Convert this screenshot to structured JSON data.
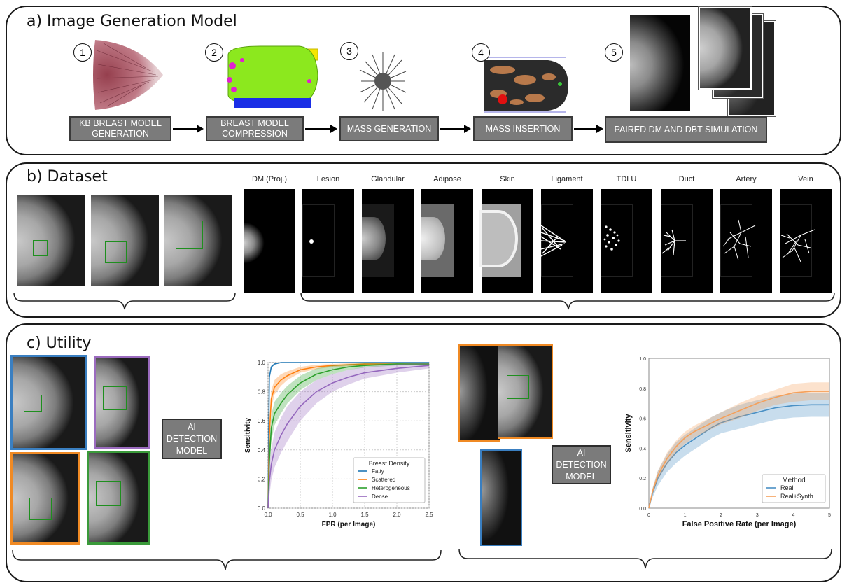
{
  "panel_a": {
    "title": "a) Image Generation Model",
    "steps": [
      {
        "num": "1",
        "label": "KB BREAST MODEL GENERATION"
      },
      {
        "num": "2",
        "label": "BREAST MODEL COMPRESSION"
      },
      {
        "num": "3",
        "label": "MASS GENERATION"
      },
      {
        "num": "4",
        "label": "MASS INSERTION"
      },
      {
        "num": "5",
        "label": "PAIRED DM AND DBT SIMULATION"
      }
    ]
  },
  "panel_b": {
    "title": "b) Dataset",
    "labels": [
      "DM (Proj.)",
      "Lesion",
      "Glandular",
      "Adipose",
      "Skin",
      "Ligament",
      "TDLU",
      "Duct",
      "Artery",
      "Vein"
    ]
  },
  "panel_c": {
    "title": "c) Utility",
    "ai_label": "AI DETECTION MODEL",
    "colors": {
      "blue": "#3a7fc1",
      "purple": "#9b6bbf",
      "orange": "#f08a24",
      "green": "#3a9a3a"
    }
  },
  "chart_data": [
    {
      "type": "line",
      "xlabel": "FPR (per Image)",
      "ylabel": "Sensitivity",
      "xlim": [
        0,
        2.5
      ],
      "ylim": [
        0,
        1.0
      ],
      "xticks": [
        "0.0",
        "0.5",
        "1.0",
        "1.5",
        "2.0",
        "2.5"
      ],
      "yticks": [
        "0.0",
        "0.2",
        "0.4",
        "0.6",
        "0.8",
        "1.0"
      ],
      "grid": true,
      "legend_title": "Breast Density",
      "legend_position": "bottom-right",
      "series": [
        {
          "name": "Fatty",
          "color": "#1f77b4",
          "x": [
            0,
            0.02,
            0.05,
            0.1,
            0.2,
            0.5,
            1.0,
            2.5
          ],
          "y": [
            0,
            0.9,
            0.97,
            0.99,
            1.0,
            1.0,
            1.0,
            1.0
          ],
          "band": [
            0.01,
            0.01,
            0.01,
            0.005,
            0,
            0,
            0,
            0
          ]
        },
        {
          "name": "Scattered",
          "color": "#ff7f0e",
          "x": [
            0,
            0.02,
            0.05,
            0.1,
            0.2,
            0.3,
            0.5,
            0.75,
            1.0,
            1.5,
            2.0,
            2.5
          ],
          "y": [
            0,
            0.5,
            0.75,
            0.83,
            0.88,
            0.91,
            0.95,
            0.97,
            0.98,
            0.99,
            0.99,
            0.99
          ],
          "band": [
            0,
            0.08,
            0.06,
            0.05,
            0.04,
            0.03,
            0.02,
            0.015,
            0.01,
            0.01,
            0.005,
            0.005
          ]
        },
        {
          "name": "Heterogeneous",
          "color": "#2ca02c",
          "x": [
            0,
            0.02,
            0.05,
            0.1,
            0.2,
            0.3,
            0.5,
            0.75,
            1.0,
            1.25,
            1.5,
            2.0,
            2.5
          ],
          "y": [
            0,
            0.32,
            0.55,
            0.65,
            0.72,
            0.78,
            0.86,
            0.92,
            0.95,
            0.97,
            0.98,
            0.99,
            0.99
          ],
          "band": [
            0,
            0.1,
            0.09,
            0.08,
            0.07,
            0.06,
            0.05,
            0.04,
            0.03,
            0.02,
            0.015,
            0.01,
            0.01
          ]
        },
        {
          "name": "Dense",
          "color": "#9467bd",
          "x": [
            0,
            0.02,
            0.05,
            0.1,
            0.2,
            0.3,
            0.5,
            0.75,
            1.0,
            1.25,
            1.5,
            2.0,
            2.5
          ],
          "y": [
            0,
            0.18,
            0.3,
            0.4,
            0.5,
            0.58,
            0.7,
            0.8,
            0.86,
            0.9,
            0.93,
            0.96,
            0.98
          ],
          "band": [
            0,
            0.1,
            0.11,
            0.12,
            0.12,
            0.12,
            0.1,
            0.08,
            0.06,
            0.05,
            0.04,
            0.03,
            0.02
          ]
        }
      ]
    },
    {
      "type": "line",
      "xlabel": "False Positive Rate (per Image)",
      "ylabel": "Sensitivity",
      "xlim": [
        0,
        5
      ],
      "ylim": [
        0,
        1.0
      ],
      "xticks": [
        "0",
        "1",
        "2",
        "3",
        "4",
        "5"
      ],
      "yticks": [
        "0.0",
        "0.2",
        "0.4",
        "0.6",
        "0.8",
        "1.0"
      ],
      "grid": false,
      "legend_title": "Method",
      "legend_position": "bottom-right",
      "series": [
        {
          "name": "Real",
          "color": "#4a90c4",
          "x": [
            0,
            0.1,
            0.25,
            0.5,
            0.75,
            1.0,
            1.25,
            1.5,
            1.75,
            2.0,
            2.5,
            3.0,
            3.5,
            4.0,
            4.5,
            5.0
          ],
          "y": [
            0,
            0.1,
            0.2,
            0.3,
            0.37,
            0.42,
            0.46,
            0.5,
            0.54,
            0.57,
            0.61,
            0.64,
            0.67,
            0.685,
            0.69,
            0.69
          ],
          "band": [
            0,
            0.03,
            0.05,
            0.06,
            0.07,
            0.07,
            0.07,
            0.07,
            0.07,
            0.07,
            0.08,
            0.08,
            0.08,
            0.08,
            0.08,
            0.08
          ]
        },
        {
          "name": "Real+Synth",
          "color": "#f5a05a",
          "x": [
            0,
            0.1,
            0.25,
            0.5,
            0.75,
            1.0,
            1.25,
            1.5,
            1.75,
            2.0,
            2.5,
            3.0,
            3.5,
            4.0,
            4.5,
            5.0
          ],
          "y": [
            0,
            0.11,
            0.22,
            0.33,
            0.41,
            0.47,
            0.51,
            0.54,
            0.57,
            0.6,
            0.65,
            0.7,
            0.74,
            0.77,
            0.78,
            0.78
          ],
          "band": [
            0,
            0.02,
            0.03,
            0.04,
            0.04,
            0.04,
            0.04,
            0.04,
            0.04,
            0.04,
            0.05,
            0.05,
            0.05,
            0.06,
            0.06,
            0.06
          ]
        }
      ]
    }
  ]
}
